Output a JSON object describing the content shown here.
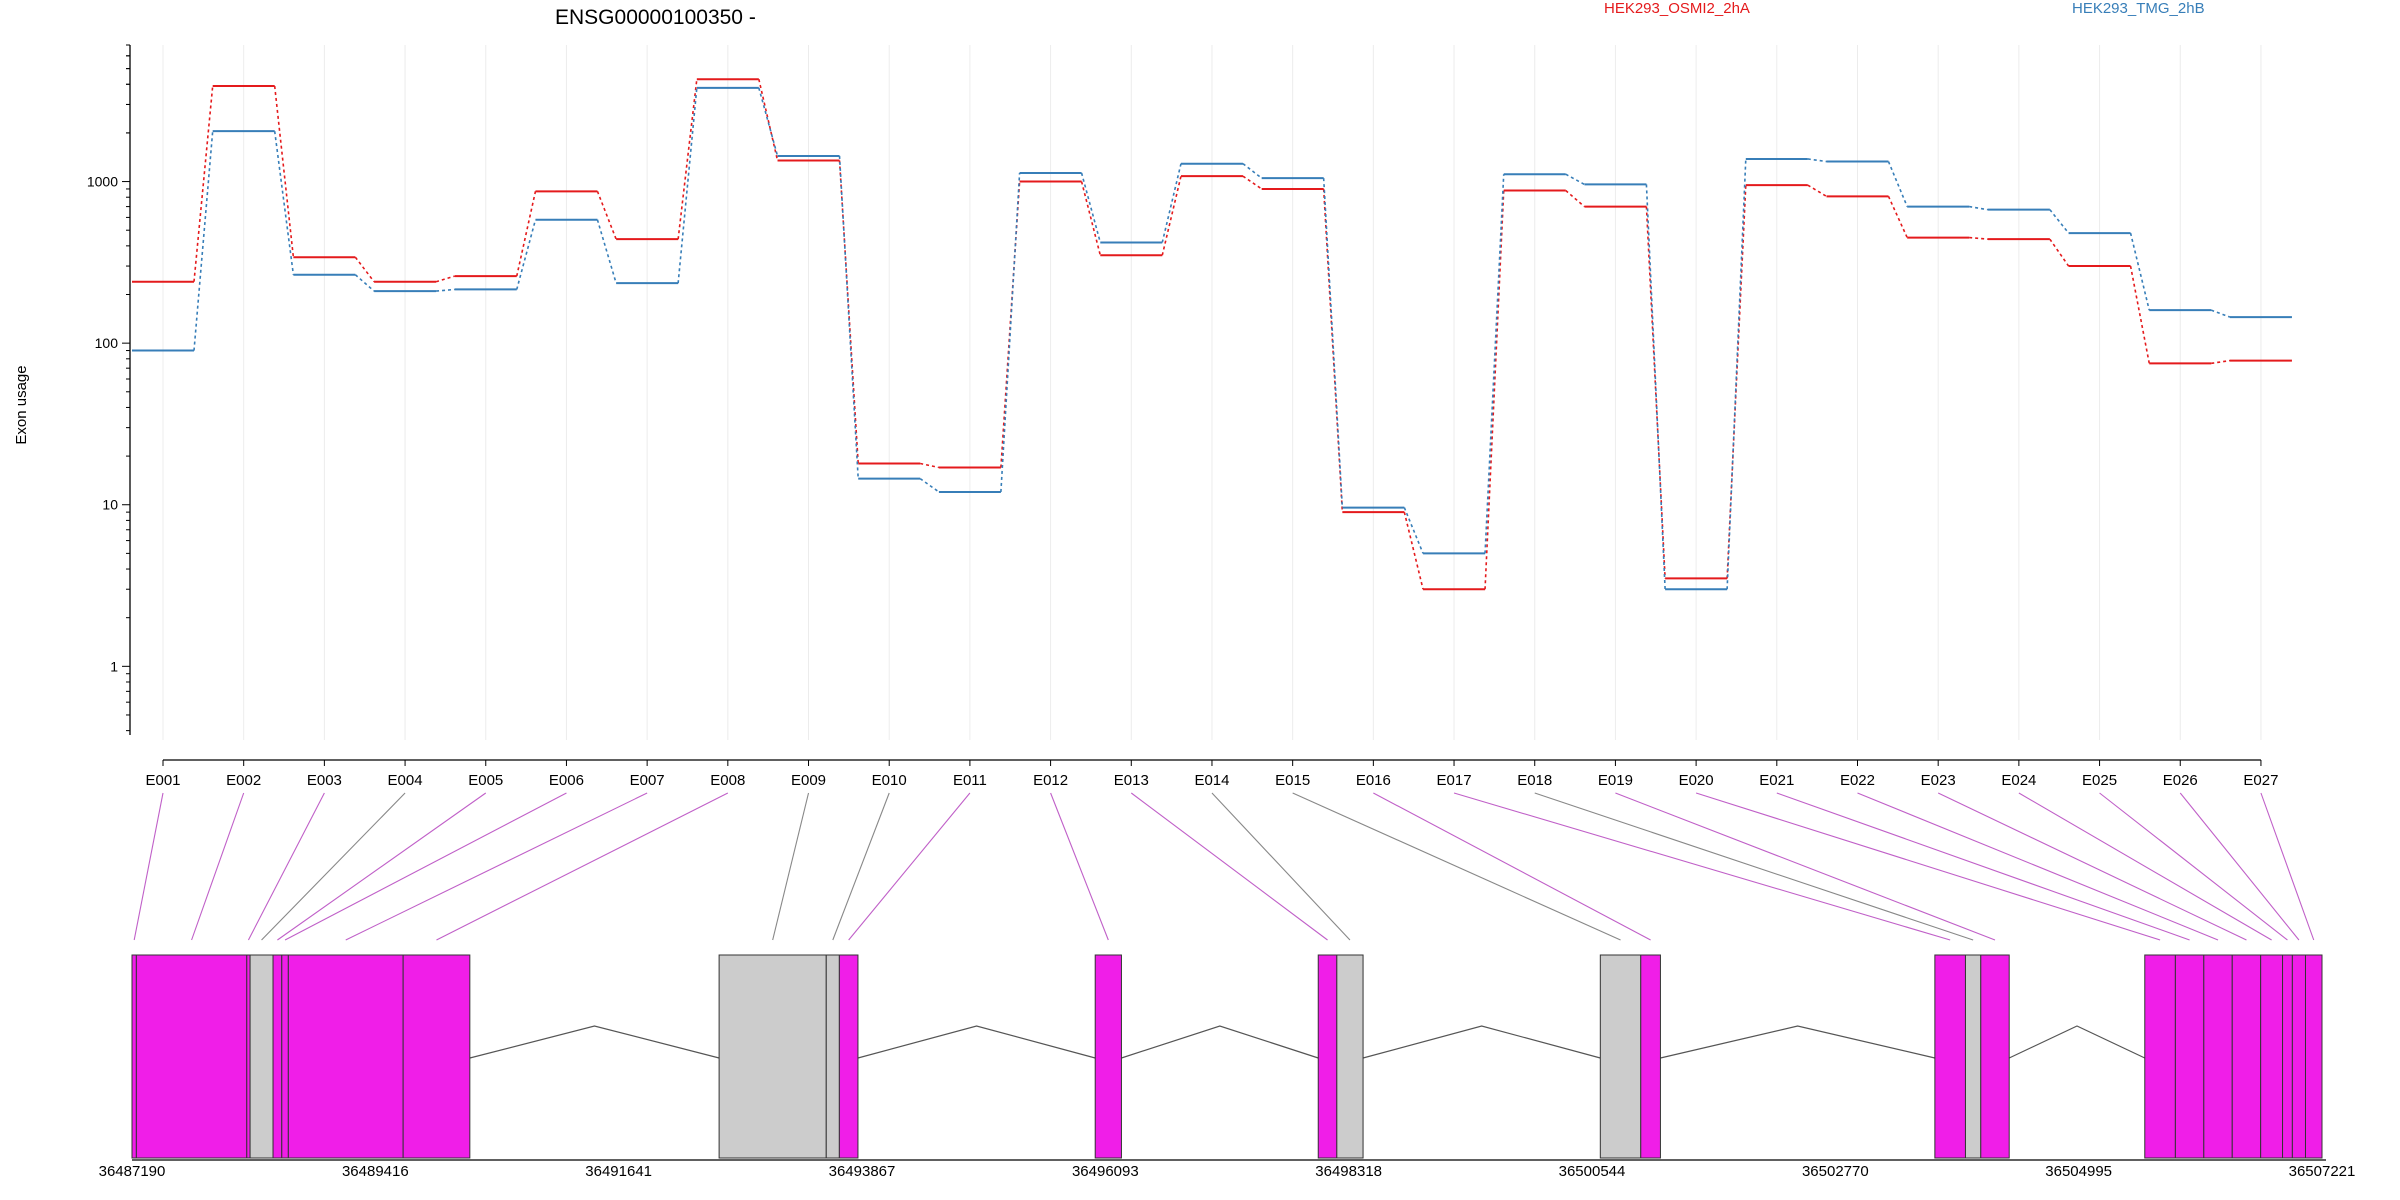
{
  "chart_data": {
    "type": "line",
    "title": "ENSG00000100350 -",
    "ylabel": "Exon usage",
    "yscale": "log",
    "ylim": [
      0.35,
      7000
    ],
    "yticks": [
      1,
      10,
      100,
      1000
    ],
    "yticklabels": [
      "1",
      "10",
      "100",
      "1000"
    ],
    "grid": true,
    "legend_position": "top",
    "categories": [
      "E001",
      "E002",
      "E003",
      "E004",
      "E005",
      "E006",
      "E007",
      "E008",
      "E009",
      "E010",
      "E011",
      "E012",
      "E013",
      "E014",
      "E015",
      "E016",
      "E017",
      "E018",
      "E019",
      "E020",
      "E021",
      "E022",
      "E023",
      "E024",
      "E025",
      "E026",
      "E027"
    ],
    "series": [
      {
        "name": "HEK293_OSMI2_2hA",
        "color": "#e41a1c",
        "values": [
          240,
          3900,
          340,
          240,
          260,
          870,
          440,
          4300,
          1350,
          18,
          17,
          1000,
          350,
          1080,
          900,
          9,
          3,
          880,
          700,
          3.5,
          950,
          810,
          450,
          440,
          300,
          75,
          78
        ]
      },
      {
        "name": "HEK293_TMG_2hB",
        "color": "#377eb8",
        "values": [
          90,
          2050,
          265,
          210,
          215,
          580,
          235,
          3800,
          1440,
          14.5,
          12,
          1130,
          420,
          1290,
          1050,
          9.6,
          5,
          1110,
          960,
          3,
          1380,
          1330,
          700,
          670,
          480,
          160,
          145
        ]
      }
    ],
    "gene_model": {
      "coordinate_ticks": [
        "36487190",
        "36489416",
        "36491641",
        "36493867",
        "36496093",
        "36498318",
        "36500544",
        "36502770",
        "36504995",
        "36507221"
      ],
      "coordinate_range": [
        36487190,
        36507221
      ],
      "exon_color": "#f01ee8",
      "nonsignificant_color": "#cccccc",
      "exons": [
        {
          "id": "E001",
          "start": 36487190,
          "end": 36487230,
          "sig": true
        },
        {
          "id": "E002",
          "start": 36487230,
          "end": 36488240,
          "sig": true
        },
        {
          "id": "E003",
          "start": 36488240,
          "end": 36488270,
          "sig": true
        },
        {
          "id": "E004",
          "start": 36488270,
          "end": 36488480,
          "sig": false
        },
        {
          "id": "E005",
          "start": 36488480,
          "end": 36488560,
          "sig": true
        },
        {
          "id": "E006",
          "start": 36488560,
          "end": 36488620,
          "sig": true
        },
        {
          "id": "E007",
          "start": 36488620,
          "end": 36489670,
          "sig": true
        },
        {
          "id": "E008",
          "start": 36489670,
          "end": 36490280,
          "sig": true
        },
        {
          "id": "E009",
          "start": 36492560,
          "end": 36493540,
          "sig": false
        },
        {
          "id": "E010",
          "start": 36493540,
          "end": 36493660,
          "sig": false
        },
        {
          "id": "E011",
          "start": 36493660,
          "end": 36493830,
          "sig": true
        },
        {
          "id": "E012",
          "start": 36496000,
          "end": 36496240,
          "sig": true
        },
        {
          "id": "E013",
          "start": 36498040,
          "end": 36498210,
          "sig": true
        },
        {
          "id": "E014",
          "start": 36498210,
          "end": 36498450,
          "sig": false
        },
        {
          "id": "E015",
          "start": 36500620,
          "end": 36500990,
          "sig": false
        },
        {
          "id": "E016",
          "start": 36500990,
          "end": 36501170,
          "sig": true
        },
        {
          "id": "E017",
          "start": 36503680,
          "end": 36503960,
          "sig": true
        },
        {
          "id": "E018",
          "start": 36503960,
          "end": 36504100,
          "sig": false
        },
        {
          "id": "E019",
          "start": 36504100,
          "end": 36504360,
          "sig": true
        },
        {
          "id": "E020",
          "start": 36505600,
          "end": 36505880,
          "sig": true
        },
        {
          "id": "E021",
          "start": 36505880,
          "end": 36506140,
          "sig": true
        },
        {
          "id": "E022",
          "start": 36506140,
          "end": 36506400,
          "sig": true
        },
        {
          "id": "E023",
          "start": 36506400,
          "end": 36506660,
          "sig": true
        },
        {
          "id": "E024",
          "start": 36506660,
          "end": 36506860,
          "sig": true
        },
        {
          "id": "E025",
          "start": 36506860,
          "end": 36506950,
          "sig": true
        },
        {
          "id": "E026",
          "start": 36506950,
          "end": 36507070,
          "sig": true
        },
        {
          "id": "E027",
          "start": 36507070,
          "end": 36507221,
          "sig": true
        }
      ]
    }
  }
}
